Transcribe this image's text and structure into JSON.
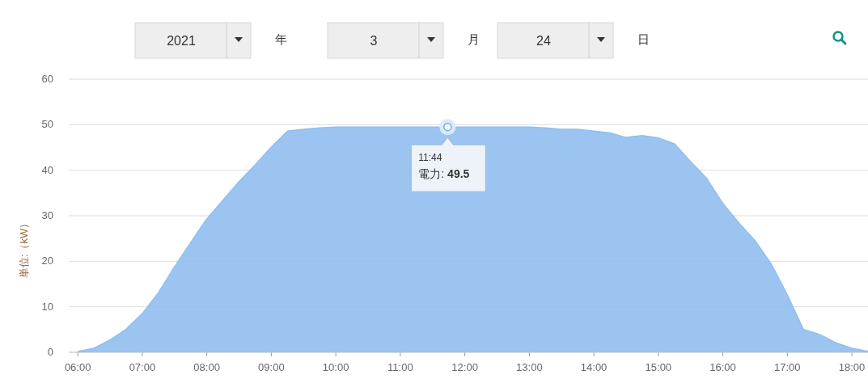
{
  "chart_data": {
    "type": "area",
    "ylabel": "単位:（kW）",
    "annotations": [
      "2021",
      "年",
      "3",
      "月",
      "24",
      "日",
      {
        "text": "11:44\n電力: 49.5",
        "x": 11.733,
        "y": 49.5
      }
    ],
    "x": [
      6.0,
      6.25,
      6.5,
      6.75,
      7.0,
      7.25,
      7.5,
      7.75,
      8.0,
      8.25,
      8.5,
      8.75,
      9.0,
      9.25,
      9.5,
      9.75,
      10.0,
      10.25,
      10.5,
      10.75,
      11.0,
      11.25,
      11.5,
      11.75,
      12.0,
      12.25,
      12.5,
      12.75,
      13.0,
      13.25,
      13.5,
      13.75,
      14.0,
      14.25,
      14.5,
      14.75,
      15.0,
      15.25,
      15.5,
      15.75,
      16.0,
      16.25,
      16.5,
      16.75,
      17.0,
      17.25,
      17.5,
      17.75,
      18.0,
      18.25
    ],
    "series": [
      {
        "color": "#90bfee",
        "values": [
          0.2,
          0.9,
          2.7,
          5.1,
          8.5,
          13.1,
          18.8,
          24.1,
          29.3,
          33.4,
          37.5,
          41.2,
          45.1,
          48.6,
          49.0,
          49.3,
          49.5,
          49.5,
          49.5,
          49.5,
          49.5,
          49.5,
          49.5,
          49.5,
          49.5,
          49.5,
          49.5,
          49.5,
          49.5,
          49.3,
          49.0,
          49.0,
          48.6,
          48.2,
          47.2,
          47.6,
          47.1,
          45.8,
          41.9,
          38.2,
          32.7,
          28.4,
          24.5,
          19.4,
          12.6,
          5.0,
          3.9,
          2.1,
          0.9,
          0.2
        ]
      }
    ],
    "xlim": [
      5.86,
      18.25
    ],
    "xticks": [
      {
        "value": 6,
        "label": "06:00"
      },
      {
        "value": 7,
        "label": "07:00"
      },
      {
        "value": 8,
        "label": "08:00"
      },
      {
        "value": 9,
        "label": "09:00"
      },
      {
        "value": 10,
        "label": "10:00"
      },
      {
        "value": 11,
        "label": "11:00"
      },
      {
        "value": 12,
        "label": "12:00"
      },
      {
        "value": 13,
        "label": "13:00"
      },
      {
        "value": 14,
        "label": "14:00"
      },
      {
        "value": 15,
        "label": "15:00"
      },
      {
        "value": 16,
        "label": "16:00"
      },
      {
        "value": 17,
        "label": "17:00"
      },
      {
        "value": 18,
        "label": "18:00"
      }
    ],
    "ylim": [
      0,
      60
    ],
    "yticks": [
      0,
      10,
      20,
      30,
      40,
      50,
      60
    ],
    "grid": "y"
  }
}
